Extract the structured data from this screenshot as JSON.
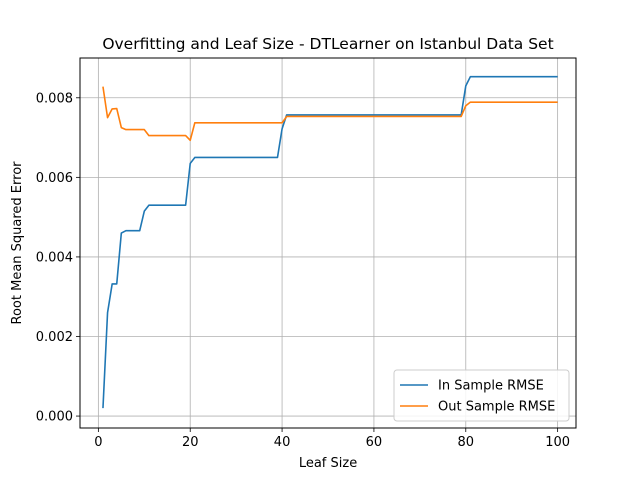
{
  "chart_data": {
    "type": "line",
    "title": "Overfitting and Leaf Size - DTLearner on Istanbul Data Set",
    "xlabel": "Leaf Size",
    "ylabel": "Root Mean Squared Error",
    "xlim": [
      -4,
      104
    ],
    "ylim": [
      -0.0003,
      0.009
    ],
    "xticks": [
      0,
      20,
      40,
      60,
      80,
      100
    ],
    "xtick_labels": [
      "0",
      "20",
      "40",
      "60",
      "80",
      "100"
    ],
    "yticks": [
      0.0,
      0.002,
      0.004,
      0.006,
      0.008
    ],
    "ytick_labels": [
      "0.000",
      "0.002",
      "0.004",
      "0.006",
      "0.008"
    ],
    "grid": true,
    "legend_position": "lower-right",
    "series": [
      {
        "name": "In Sample RMSE",
        "color": "#1f77b4",
        "points": [
          [
            1,
            0.0002
          ],
          [
            2,
            0.0026
          ],
          [
            3,
            0.00332
          ],
          [
            4,
            0.00332
          ],
          [
            5,
            0.0046
          ],
          [
            6,
            0.00466
          ],
          [
            9,
            0.00466
          ],
          [
            10,
            0.00515
          ],
          [
            11,
            0.0053
          ],
          [
            19,
            0.0053
          ],
          [
            20,
            0.00635
          ],
          [
            21,
            0.0065
          ],
          [
            39,
            0.0065
          ],
          [
            40,
            0.00722
          ],
          [
            41,
            0.00757
          ],
          [
            79,
            0.00757
          ],
          [
            80,
            0.0083
          ],
          [
            81,
            0.00853
          ],
          [
            100,
            0.00853
          ]
        ]
      },
      {
        "name": "Out Sample RMSE",
        "color": "#ff7f0e",
        "points": [
          [
            1,
            0.00828
          ],
          [
            2,
            0.0075
          ],
          [
            3,
            0.00772
          ],
          [
            4,
            0.00773
          ],
          [
            5,
            0.00725
          ],
          [
            6,
            0.0072
          ],
          [
            10,
            0.0072
          ],
          [
            11,
            0.00705
          ],
          [
            19,
            0.00705
          ],
          [
            20,
            0.00693
          ],
          [
            21,
            0.00737
          ],
          [
            40,
            0.00737
          ],
          [
            41,
            0.00753
          ],
          [
            79,
            0.00753
          ],
          [
            80,
            0.0078
          ],
          [
            81,
            0.00789
          ],
          [
            100,
            0.00789
          ]
        ]
      }
    ]
  }
}
